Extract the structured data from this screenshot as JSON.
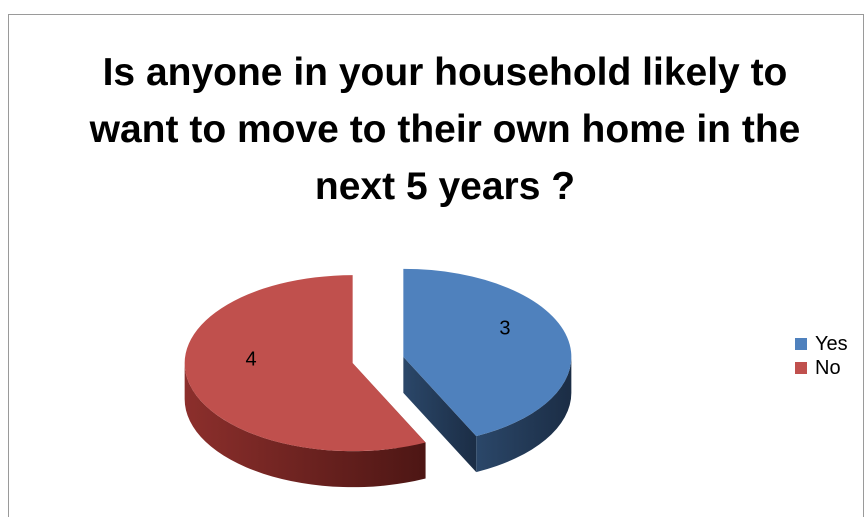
{
  "chart_data": {
    "type": "pie",
    "title": "Is anyone in your household likely to want to move to their own home in the next 5 years ?",
    "categories": [
      "Yes",
      "No"
    ],
    "values": [
      3,
      4
    ],
    "colors": [
      "#4f81bd",
      "#c0504d"
    ],
    "legend_position": "right",
    "style": "3d-exploded"
  }
}
